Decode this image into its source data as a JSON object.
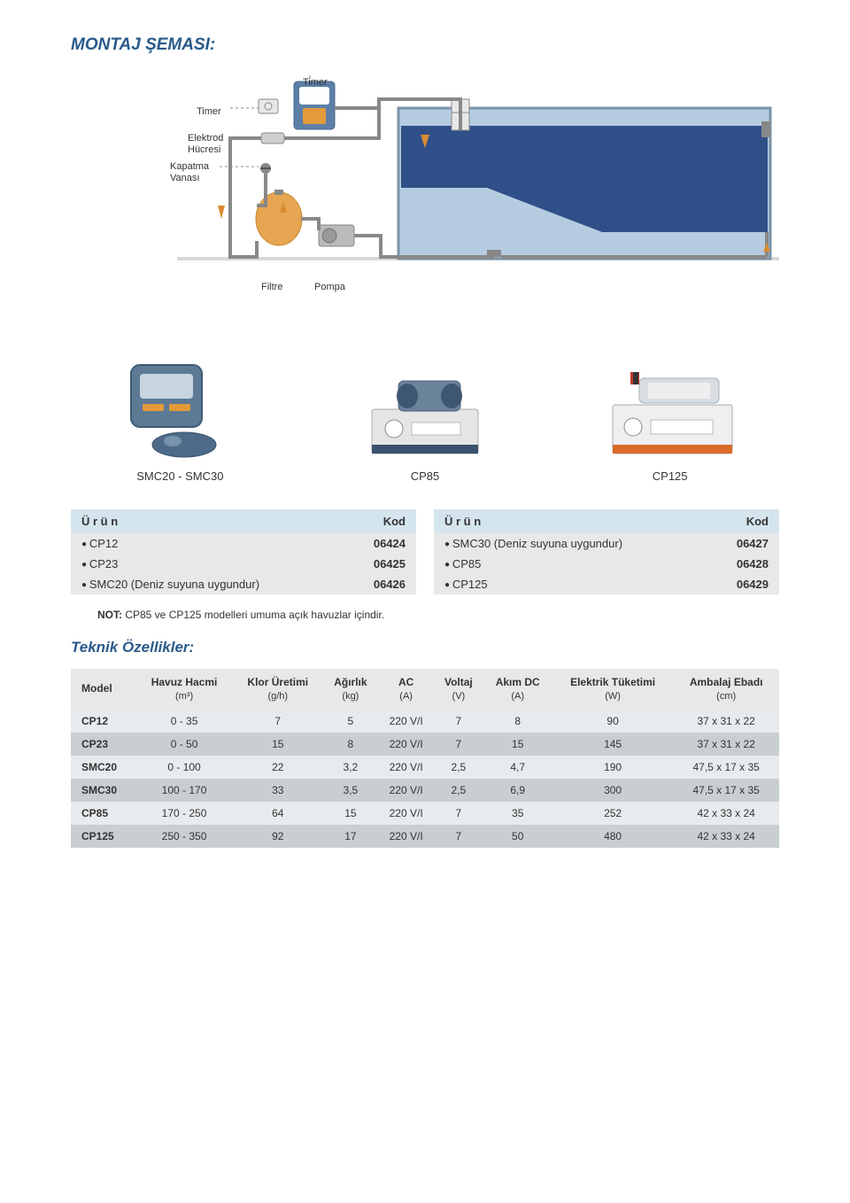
{
  "page_title": "MONTAJ ŞEMASI:",
  "diagram": {
    "labels": {
      "timer1": "Timer",
      "timer2": "Timer",
      "elektrod": "Elektrod\nHücresi",
      "kapatma": "Kapatma\nVanası",
      "filtre": "Filtre",
      "pompa": "Pompa"
    },
    "colors": {
      "pool_water": "#5a7ea5",
      "pool_light": "#b5cce0",
      "pipe": "#888888",
      "arrow": "#d98b2e",
      "timer_body": "#e8e8e8",
      "timer_outline": "#888",
      "tank_body": "#5c7fa8",
      "tank_label": "#ffffff",
      "tank_orange": "#e39a3b",
      "filter": "#e6a550",
      "pump_gray": "#bbbbbb",
      "valve": "#888",
      "ground": "#d9d9d9"
    }
  },
  "products": [
    {
      "label": "SMC20 - SMC30",
      "svg_type": "smc"
    },
    {
      "label": "CP85",
      "svg_type": "cp85"
    },
    {
      "label": "CP125",
      "svg_type": "cp125"
    }
  ],
  "codes": {
    "header_urun": "Ü r ü n",
    "header_kod": "Kod",
    "left": [
      {
        "name": "CP12",
        "kod": "06424"
      },
      {
        "name": "CP23",
        "kod": "06425"
      },
      {
        "name": "SMC20 (Deniz suyuna uygundur)",
        "kod": "06426"
      }
    ],
    "right": [
      {
        "name": "SMC30 (Deniz suyuna uygundur)",
        "kod": "06427"
      },
      {
        "name": "CP85",
        "kod": "06428"
      },
      {
        "name": "CP125",
        "kod": "06429"
      }
    ]
  },
  "note": {
    "label": "NOT:",
    "text": " CP85 ve CP125 modelleri umuma açık havuzlar içindir."
  },
  "specs_title": "Teknik Özellikler:",
  "specs": {
    "columns": [
      {
        "title": "Model",
        "unit": ""
      },
      {
        "title": "Havuz Hacmi",
        "unit": "(m³)"
      },
      {
        "title": "Klor Üretimi",
        "unit": "(g/h)"
      },
      {
        "title": "Ağırlık",
        "unit": "(kg)"
      },
      {
        "title": "AC",
        "unit": "(A)"
      },
      {
        "title": "Voltaj",
        "unit": "(V)"
      },
      {
        "title": "Akım DC",
        "unit": "(A)"
      },
      {
        "title": "Elektrik Tüketimi",
        "unit": "(W)"
      },
      {
        "title": "Ambalaj Ebadı",
        "unit": "(cm)"
      }
    ],
    "rows": [
      {
        "cells": [
          "CP12",
          "0 - 35",
          "7",
          "5",
          "220 V/I",
          "7",
          "8",
          "90",
          "37 x 31 x 22"
        ],
        "shade": "light"
      },
      {
        "cells": [
          "CP23",
          "0 - 50",
          "15",
          "8",
          "220 V/I",
          "7",
          "15",
          "145",
          "37 x 31 x 22"
        ],
        "shade": "dark"
      },
      {
        "cells": [
          "SMC20",
          "0 - 100",
          "22",
          "3,2",
          "220 V/I",
          "2,5",
          "4,7",
          "190",
          "47,5 x 17 x 35"
        ],
        "shade": "light"
      },
      {
        "cells": [
          "SMC30",
          "100 - 170",
          "33",
          "3,5",
          "220 V/I",
          "2,5",
          "6,9",
          "300",
          "47,5 x 17 x 35"
        ],
        "shade": "dark"
      },
      {
        "cells": [
          "CP85",
          "170 - 250",
          "64",
          "15",
          "220 V/I",
          "7",
          "35",
          "252",
          "42 x 33 x 24"
        ],
        "shade": "light"
      },
      {
        "cells": [
          "CP125",
          "250 - 350",
          "92",
          "17",
          "220 V/I",
          "7",
          "50",
          "480",
          "42 x 33 x 24"
        ],
        "shade": "dark"
      }
    ]
  },
  "table_colors": {
    "header_bg": "#e8e8e8",
    "row_light": "#e8ebed",
    "row_dark": "#c8ced2",
    "codes_header_bg": "#d5e5ee",
    "codes_row_bg": "#e8e8e8"
  }
}
